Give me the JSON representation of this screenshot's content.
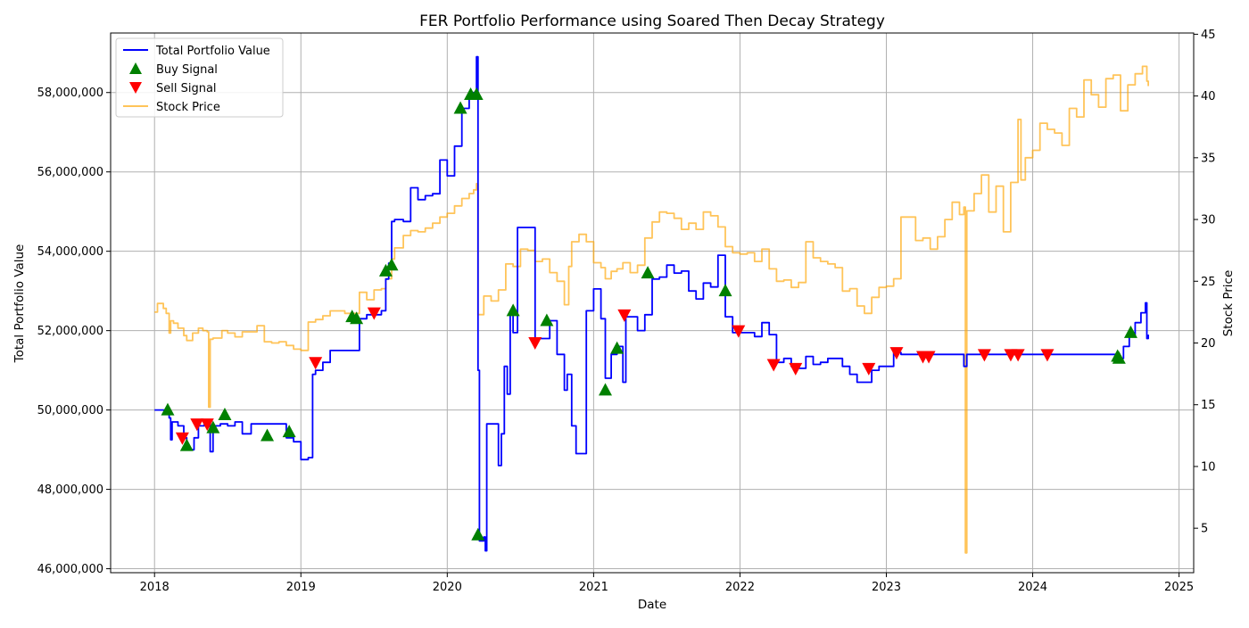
{
  "chart_data": {
    "type": "line",
    "title": "FER Portfolio Performance using Soared Then Decay Strategy",
    "xlabel": "Date",
    "ylabel": "Total Portfolio Value",
    "y2label": "Stock Price",
    "xlim": [
      2017.7,
      2025.1
    ],
    "ylim": [
      45900000,
      59500000
    ],
    "y2lim": [
      1.4,
      45.1
    ],
    "x_ticks": [
      2018,
      2019,
      2020,
      2021,
      2022,
      2023,
      2024,
      2025
    ],
    "x_tick_labels": [
      "2018",
      "2019",
      "2020",
      "2021",
      "2022",
      "2023",
      "2024",
      "2025"
    ],
    "y_ticks": [
      46000000,
      48000000,
      50000000,
      52000000,
      54000000,
      56000000,
      58000000
    ],
    "y_tick_labels": [
      "46,000,000",
      "48,000,000",
      "50,000,000",
      "52,000,000",
      "54,000,000",
      "56,000,000",
      "58,000,000"
    ],
    "y2_ticks": [
      5,
      10,
      15,
      20,
      25,
      30,
      35,
      40,
      45
    ],
    "y2_tick_labels": [
      "5",
      "10",
      "15",
      "20",
      "25",
      "30",
      "35",
      "40",
      "45"
    ],
    "grid": true,
    "legend_position": "top-left",
    "legend": [
      "Total Portfolio Value",
      "Buy Signal",
      "Sell Signal",
      "Stock Price"
    ],
    "colors": {
      "portfolio": "#0000ff",
      "buy": "#008000",
      "sell": "#ff0000",
      "stock": "#ffa500",
      "grid": "#b0b0b0"
    },
    "portfolio_value": {
      "x": [
        2018.0,
        2018.08,
        2018.1,
        2018.11,
        2018.12,
        2018.16,
        2018.2,
        2018.22,
        2018.27,
        2018.3,
        2018.34,
        2018.38,
        2018.38,
        2018.4,
        2018.45,
        2018.5,
        2018.55,
        2018.6,
        2018.66,
        2018.7,
        2018.72,
        2018.9,
        2018.95,
        2019.0,
        2019.05,
        2019.08,
        2019.1,
        2019.15,
        2019.2,
        2019.3,
        2019.4,
        2019.45,
        2019.55,
        2019.58,
        2019.6,
        2019.62,
        2019.64,
        2019.7,
        2019.75,
        2019.8,
        2019.85,
        2019.9,
        2019.95,
        2020.0,
        2020.05,
        2020.1,
        2020.15,
        2020.18,
        2020.2,
        2020.21,
        2020.22,
        2020.25,
        2020.26,
        2020.27,
        2020.3,
        2020.35,
        2020.37,
        2020.39,
        2020.41,
        2020.43,
        2020.45,
        2020.48,
        2020.5,
        2020.6,
        2020.7,
        2020.75,
        2020.8,
        2020.82,
        2020.85,
        2020.88,
        2020.95,
        2021.0,
        2021.05,
        2021.08,
        2021.12,
        2021.16,
        2021.2,
        2021.22,
        2021.3,
        2021.35,
        2021.4,
        2021.45,
        2021.5,
        2021.55,
        2021.6,
        2021.65,
        2021.7,
        2021.75,
        2021.8,
        2021.85,
        2021.9,
        2021.95,
        2022.0,
        2022.05,
        2022.1,
        2022.15,
        2022.2,
        2022.25,
        2022.3,
        2022.35,
        2022.4,
        2022.45,
        2022.5,
        2022.55,
        2022.6,
        2022.65,
        2022.7,
        2022.75,
        2022.8,
        2022.85,
        2022.9,
        2022.95,
        2023.0,
        2023.05,
        2023.1,
        2023.2,
        2023.3,
        2023.4,
        2023.5,
        2023.53,
        2023.55,
        2023.7,
        2023.9,
        2024.1,
        2024.3,
        2024.5,
        2024.58,
        2024.62,
        2024.66,
        2024.7,
        2024.74,
        2024.77,
        2024.78,
        2024.79
      ],
      "y": [
        50000000,
        50000000,
        49800000,
        49250000,
        49700000,
        49600000,
        49300000,
        49000000,
        49300000,
        49600000,
        49700000,
        49600000,
        48950000,
        49600000,
        49650000,
        49600000,
        49700000,
        49400000,
        49650000,
        49650000,
        49650000,
        49300000,
        49200000,
        48750000,
        48800000,
        50900000,
        51000000,
        51200000,
        51500000,
        51500000,
        52300000,
        52400000,
        52500000,
        53300000,
        53700000,
        54750000,
        54800000,
        54750000,
        55600000,
        55300000,
        55400000,
        55450000,
        56300000,
        55900000,
        56650000,
        57600000,
        57850000,
        58000000,
        58900000,
        51000000,
        46700000,
        46800000,
        46450000,
        49650000,
        49650000,
        48600000,
        49400000,
        51100000,
        50400000,
        52500000,
        51950000,
        54600000,
        54600000,
        51800000,
        52250000,
        51400000,
        50500000,
        50900000,
        49600000,
        48900000,
        52500000,
        53050000,
        52300000,
        50800000,
        51400000,
        51600000,
        50700000,
        52350000,
        52000000,
        52400000,
        53300000,
        53350000,
        53650000,
        53450000,
        53500000,
        53000000,
        52800000,
        53200000,
        53100000,
        53900000,
        52350000,
        51950000,
        51950000,
        51950000,
        51850000,
        52200000,
        51900000,
        51200000,
        51300000,
        51100000,
        51050000,
        51350000,
        51150000,
        51200000,
        51300000,
        51300000,
        51100000,
        50900000,
        50700000,
        50700000,
        51000000,
        51100000,
        51100000,
        51450000,
        51400000,
        51400000,
        51400000,
        51400000,
        51400000,
        51100000,
        51400000,
        51400000,
        51400000,
        51400000,
        51400000,
        51400000,
        51300000,
        51600000,
        51900000,
        52200000,
        52450000,
        52700000,
        51800000,
        51900000
      ]
    },
    "stock_price": {
      "x": [
        2018.0,
        2018.02,
        2018.06,
        2018.08,
        2018.1,
        2018.11,
        2018.13,
        2018.16,
        2018.2,
        2018.22,
        2018.26,
        2018.3,
        2018.33,
        2018.36,
        2018.37,
        2018.38,
        2018.4,
        2018.46,
        2018.5,
        2018.55,
        2018.6,
        2018.65,
        2018.7,
        2018.75,
        2018.8,
        2018.85,
        2018.9,
        2018.95,
        2019.0,
        2019.05,
        2019.1,
        2019.15,
        2019.2,
        2019.3,
        2019.4,
        2019.45,
        2019.5,
        2019.55,
        2019.58,
        2019.62,
        2019.64,
        2019.7,
        2019.75,
        2019.8,
        2019.85,
        2019.9,
        2019.95,
        2020.0,
        2020.05,
        2020.1,
        2020.15,
        2020.18,
        2020.2,
        2020.21,
        2020.25,
        2020.3,
        2020.35,
        2020.4,
        2020.45,
        2020.5,
        2020.55,
        2020.6,
        2020.65,
        2020.7,
        2020.75,
        2020.8,
        2020.83,
        2020.85,
        2020.9,
        2020.95,
        2021.0,
        2021.05,
        2021.08,
        2021.12,
        2021.16,
        2021.2,
        2021.25,
        2021.3,
        2021.35,
        2021.4,
        2021.45,
        2021.5,
        2021.55,
        2021.6,
        2021.65,
        2021.7,
        2021.75,
        2021.8,
        2021.85,
        2021.9,
        2021.95,
        2022.0,
        2022.05,
        2022.1,
        2022.15,
        2022.2,
        2022.25,
        2022.3,
        2022.35,
        2022.4,
        2022.45,
        2022.5,
        2022.55,
        2022.6,
        2022.65,
        2022.7,
        2022.75,
        2022.8,
        2022.85,
        2022.9,
        2022.95,
        2023.0,
        2023.05,
        2023.1,
        2023.2,
        2023.25,
        2023.3,
        2023.35,
        2023.4,
        2023.45,
        2023.5,
        2023.53,
        2023.54,
        2023.55,
        2023.6,
        2023.65,
        2023.7,
        2023.75,
        2023.8,
        2023.85,
        2023.9,
        2023.92,
        2023.95,
        2024.0,
        2024.05,
        2024.1,
        2024.15,
        2024.2,
        2024.25,
        2024.3,
        2024.35,
        2024.4,
        2024.45,
        2024.5,
        2024.55,
        2024.6,
        2024.65,
        2024.7,
        2024.75,
        2024.78,
        2024.79
      ],
      "y": [
        22.5,
        23.2,
        22.8,
        22.4,
        20.8,
        21.8,
        21.6,
        21.2,
        20.6,
        20.2,
        20.8,
        21.2,
        21.0,
        20.9,
        14.8,
        20.3,
        20.4,
        21.0,
        20.8,
        20.5,
        20.9,
        20.9,
        21.4,
        20.1,
        20.0,
        20.1,
        19.8,
        19.5,
        19.4,
        21.7,
        21.9,
        22.2,
        22.6,
        22.4,
        24.1,
        23.5,
        24.3,
        24.4,
        25.2,
        26.8,
        27.7,
        28.7,
        29.1,
        29.0,
        29.3,
        29.7,
        30.2,
        30.5,
        31.1,
        31.7,
        32.1,
        32.4,
        32.9,
        22.3,
        23.8,
        23.4,
        24.3,
        26.4,
        26.2,
        27.6,
        27.5,
        26.6,
        26.8,
        25.7,
        25.0,
        23.1,
        26.2,
        28.2,
        28.8,
        28.2,
        26.5,
        26.1,
        25.2,
        25.8,
        26.0,
        26.5,
        25.7,
        26.3,
        28.5,
        29.8,
        30.6,
        30.5,
        30.1,
        29.2,
        29.7,
        29.2,
        30.6,
        30.3,
        29.4,
        27.8,
        27.3,
        27.2,
        27.3,
        26.6,
        27.6,
        26.0,
        25.0,
        25.1,
        24.5,
        24.9,
        28.2,
        26.9,
        26.6,
        26.4,
        26.1,
        24.2,
        24.4,
        23.0,
        22.4,
        23.7,
        24.5,
        24.6,
        25.2,
        30.2,
        28.3,
        28.5,
        27.6,
        28.6,
        30.0,
        31.4,
        30.4,
        31.0,
        3.0,
        30.7,
        32.1,
        33.6,
        30.6,
        32.7,
        29.0,
        33.0,
        38.1,
        33.2,
        35.0,
        35.6,
        37.8,
        37.3,
        37.0,
        36.0,
        39.0,
        38.3,
        41.3,
        40.1,
        39.1,
        41.4,
        41.7,
        38.8,
        40.9,
        41.8,
        42.4,
        41.2,
        40.8
      ]
    },
    "buy_signals": {
      "x": [
        2018.09,
        2018.22,
        2018.4,
        2018.48,
        2018.77,
        2018.92,
        2019.35,
        2019.38,
        2019.58,
        2019.62,
        2020.09,
        2020.16,
        2020.2,
        2020.21,
        2020.45,
        2020.68,
        2021.08,
        2021.16,
        2021.37,
        2021.9,
        2024.58,
        2024.59,
        2024.67
      ],
      "y": [
        50000000,
        49100000,
        49550000,
        49880000,
        49350000,
        49450000,
        52350000,
        52300000,
        53500000,
        53650000,
        57600000,
        57950000,
        57950000,
        46850000,
        52500000,
        52250000,
        50500000,
        51550000,
        53450000,
        53000000,
        51350000,
        51300000,
        51950000
      ]
    },
    "sell_signals": {
      "x": [
        2018.19,
        2018.29,
        2018.36,
        2019.1,
        2019.5,
        2020.6,
        2021.21,
        2021.99,
        2022.23,
        2022.38,
        2022.88,
        2023.07,
        2023.25,
        2023.29,
        2023.67,
        2023.85,
        2023.9,
        2024.1
      ],
      "y": [
        49300000,
        49650000,
        49650000,
        51200000,
        52450000,
        51700000,
        52400000,
        52000000,
        51150000,
        51050000,
        51050000,
        51450000,
        51350000,
        51350000,
        51400000,
        51400000,
        51400000,
        51400000
      ]
    }
  }
}
